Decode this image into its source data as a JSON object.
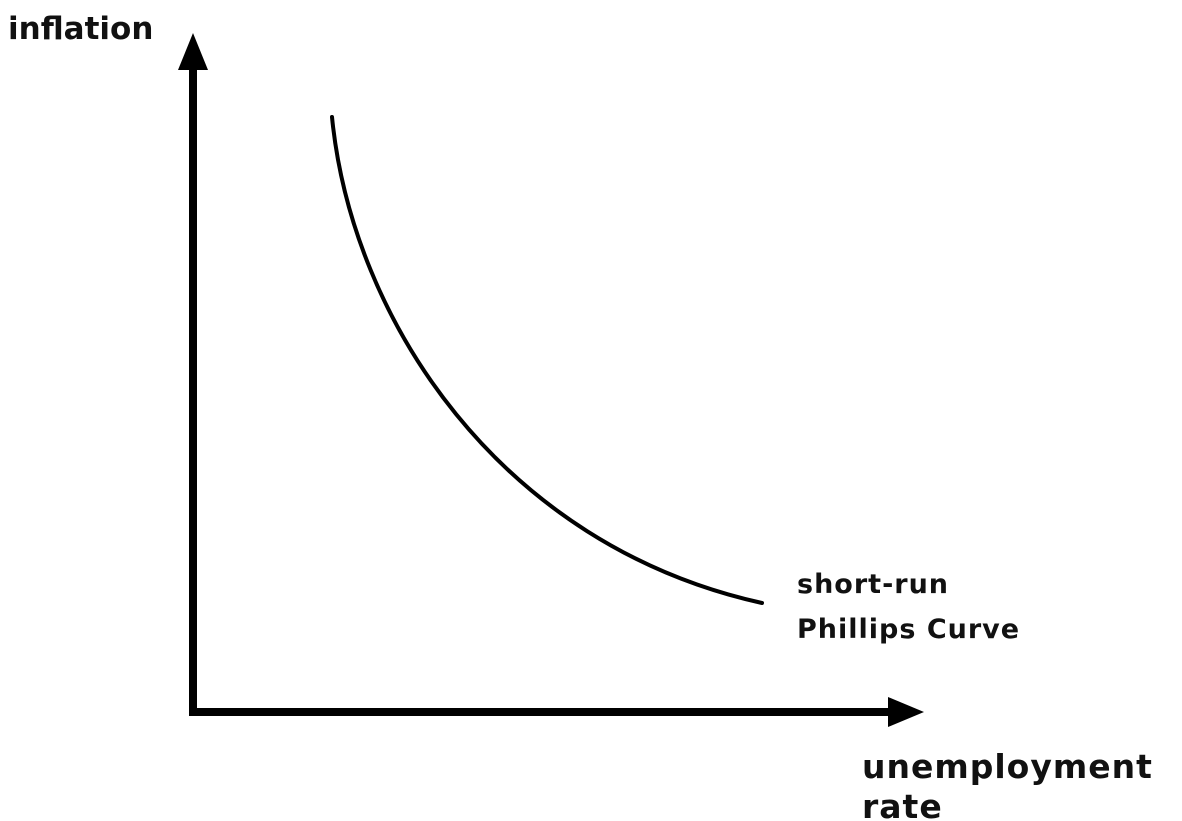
{
  "y_axis": {
    "label": "inflation"
  },
  "x_axis": {
    "label_lines": [
      "unemployment",
      "rate"
    ]
  },
  "curve": {
    "label_lines": [
      "short-run",
      "Phillips Curve"
    ]
  }
}
